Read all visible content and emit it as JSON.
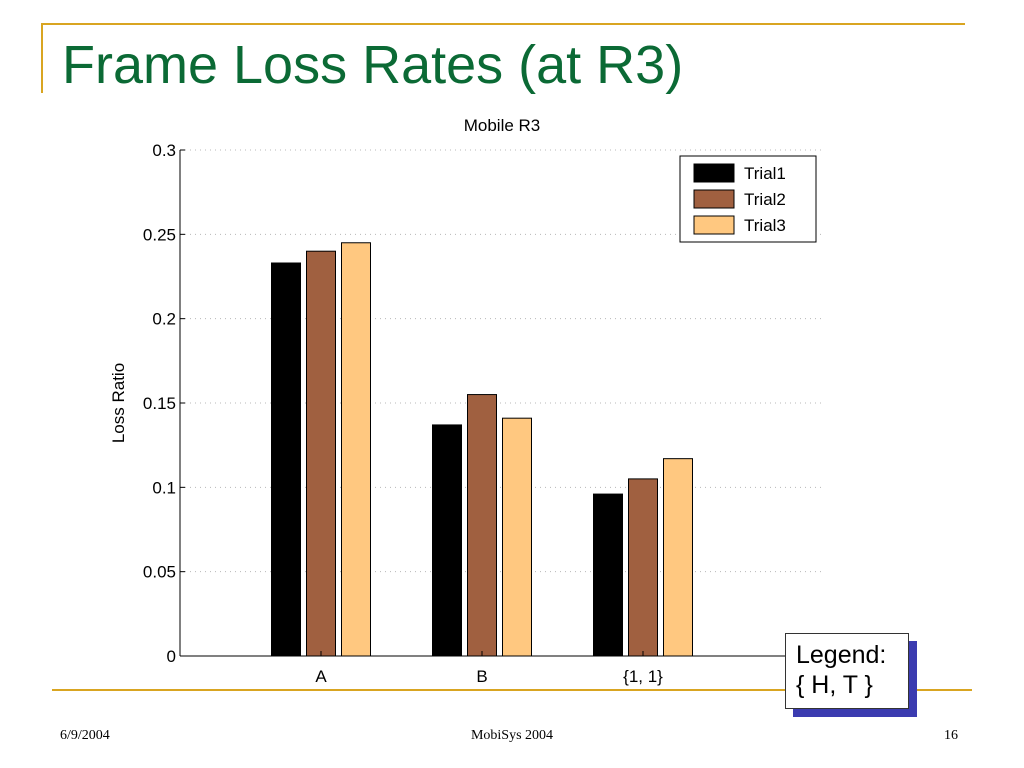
{
  "slide": {
    "title": "Frame Loss Rates (at R3)",
    "footer_date": "6/9/2004",
    "footer_conference": "MobiSys 2004",
    "page_number": "16",
    "accent_color": "#d9a521",
    "title_color": "#0b6a35"
  },
  "note_box": {
    "line1": "Legend:",
    "line2": "{ H, T }"
  },
  "chart_data": {
    "type": "bar",
    "title": "Mobile R3",
    "xlabel": "",
    "ylabel": "Loss Ratio",
    "categories": [
      "A",
      "B",
      "{1, 1}"
    ],
    "ylim": [
      0,
      0.3
    ],
    "yticks": [
      0,
      0.05,
      0.1,
      0.15,
      0.2,
      0.25,
      0.3
    ],
    "ytick_labels": [
      "0",
      "0.05",
      "0.1",
      "0.15",
      "0.2",
      "0.25",
      "0.3"
    ],
    "grid": true,
    "legend_position": "top-right",
    "series": [
      {
        "name": "Trial1",
        "color": "#000000",
        "values": [
          0.233,
          0.137,
          0.096
        ]
      },
      {
        "name": "Trial2",
        "color": "#a06040",
        "values": [
          0.24,
          0.155,
          0.105
        ]
      },
      {
        "name": "Trial3",
        "color": "#ffc880",
        "values": [
          0.245,
          0.141,
          0.117
        ]
      }
    ]
  }
}
